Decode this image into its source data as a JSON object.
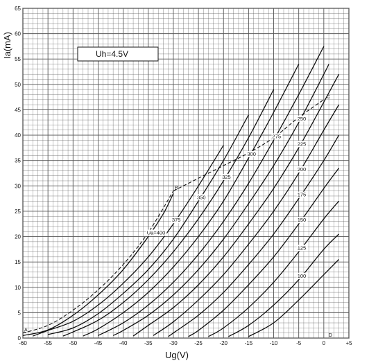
{
  "chart_data": {
    "type": "line",
    "title": "",
    "xlabel": "Ug(V)",
    "ylabel": "Ia(mA)",
    "xlim": [
      -60,
      5
    ],
    "ylim": [
      0,
      65
    ],
    "grid": true,
    "x_ticks": [
      "-60",
      "-55",
      "-50",
      "-45",
      "-40",
      "-35",
      "-30",
      "-25",
      "-20",
      "-15",
      "-10",
      "-5",
      "0",
      "+5"
    ],
    "y_ticks": [
      "0",
      "5",
      "10",
      "15",
      "20",
      "25",
      "30",
      "35",
      "40",
      "45",
      "50",
      "55",
      "60",
      "65"
    ],
    "annotation": "Uh=4.5V",
    "series": [
      {
        "name": "Ua=400",
        "x": [
          -60,
          -55,
          -50,
          -45,
          -40,
          -35,
          -32,
          -30
        ],
        "y": [
          0.5,
          1.6,
          4.5,
          8.5,
          13.5,
          20,
          24.5,
          28.5
        ]
      },
      {
        "name": "375",
        "x": [
          -58,
          -55,
          -50,
          -45,
          -40,
          -35,
          -30,
          -25,
          -20
        ],
        "y": [
          0.4,
          1.5,
          3.3,
          6.5,
          10.8,
          16,
          22.5,
          30,
          38
        ]
      },
      {
        "name": "350",
        "x": [
          -55,
          -50,
          -45,
          -40,
          -35,
          -30,
          -25,
          -20,
          -15
        ],
        "y": [
          0.7,
          2,
          4.8,
          8.8,
          13.5,
          19.5,
          27,
          35,
          44
        ]
      },
      {
        "name": "325",
        "x": [
          -52,
          -50,
          -45,
          -40,
          -35,
          -30,
          -25,
          -20,
          -15,
          -10
        ],
        "y": [
          0.4,
          1.2,
          3.5,
          7,
          11.5,
          17,
          23.5,
          31,
          39.5,
          49
        ]
      },
      {
        "name": "300",
        "x": [
          -48,
          -45,
          -40,
          -35,
          -30,
          -25,
          -20,
          -15,
          -10,
          -5
        ],
        "y": [
          0.4,
          1.8,
          5,
          9,
          14,
          20,
          27,
          35.5,
          44.5,
          54
        ]
      },
      {
        "name": "275",
        "x": [
          -45,
          -40,
          -35,
          -30,
          -25,
          -20,
          -15,
          -10,
          -5,
          0
        ],
        "y": [
          0.5,
          3,
          6.5,
          11,
          16.5,
          23,
          30.5,
          39,
          48,
          57.5
        ]
      },
      {
        "name": "250",
        "x": [
          -42,
          -40,
          -35,
          -30,
          -25,
          -20,
          -15,
          -10,
          -5,
          0,
          1
        ],
        "y": [
          0.5,
          1.5,
          4.5,
          8.5,
          13.5,
          19.5,
          26.5,
          34,
          42.5,
          52,
          54
        ]
      },
      {
        "name": "225",
        "x": [
          -38,
          -35,
          -30,
          -25,
          -20,
          -15,
          -10,
          -5,
          0,
          3
        ],
        "y": [
          0.4,
          2.5,
          6,
          10.5,
          16,
          22.5,
          29.5,
          37.5,
          46.5,
          52
        ]
      },
      {
        "name": "200",
        "x": [
          -34,
          -30,
          -25,
          -20,
          -15,
          -10,
          -5,
          0,
          3
        ],
        "y": [
          0.5,
          3.2,
          7.5,
          12.5,
          18.5,
          25,
          32.5,
          41,
          46
        ]
      },
      {
        "name": "175",
        "x": [
          -31,
          -30,
          -25,
          -20,
          -15,
          -10,
          -5,
          0,
          3
        ],
        "y": [
          0.3,
          1,
          4.5,
          9,
          14.5,
          20.5,
          27.5,
          35,
          40
        ]
      },
      {
        "name": "150",
        "x": [
          -27,
          -25,
          -20,
          -15,
          -10,
          -5,
          0,
          3
        ],
        "y": [
          0.3,
          1.5,
          5.5,
          10.5,
          16,
          22.5,
          29.5,
          33.5
        ]
      },
      {
        "name": "125",
        "x": [
          -23,
          -20,
          -15,
          -10,
          -5,
          0,
          3
        ],
        "y": [
          0.3,
          2,
          6,
          11,
          17,
          23.5,
          27
        ]
      },
      {
        "name": "100",
        "x": [
          -19,
          -15,
          -10,
          -5,
          0,
          3
        ],
        "y": [
          0.3,
          2.5,
          6.5,
          11.5,
          17.5,
          20.5
        ]
      },
      {
        "name": "",
        "x": [
          -15,
          -10,
          -5,
          0,
          3
        ],
        "y": [
          0.3,
          3,
          7.5,
          12.5,
          15.5
        ]
      },
      {
        "name": "",
        "x": [
          -60,
          -55,
          -50,
          -45,
          -40,
          -35,
          -30
        ],
        "y": [
          1,
          2.5,
          5.5,
          9.5,
          14.5,
          20.8,
          29
        ]
      },
      {
        "name": "",
        "x": [
          -30,
          -25,
          -20,
          -15,
          -10,
          -5,
          0
        ],
        "y": [
          29,
          31.5,
          34,
          36.5,
          39.5,
          43.5,
          47
        ]
      }
    ],
    "dashed_series": [
      14,
      15
    ],
    "point_labels": [
      {
        "text": "A",
        "x": -60,
        "y": 1
      },
      {
        "text": "B",
        "x": -30,
        "y": 29
      },
      {
        "text": "C",
        "x": 0.3,
        "y": 47
      },
      {
        "text": "D",
        "x": 0.7,
        "y": 0
      }
    ]
  }
}
